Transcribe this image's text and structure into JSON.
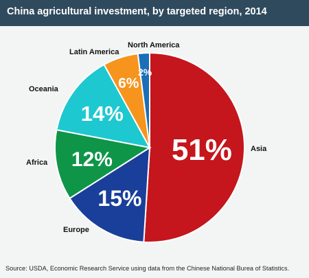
{
  "header": {
    "title": "China agricultural investment, by targeted region, 2014"
  },
  "footer": {
    "source": "Source: USDA, Economic Research Service using data from the Chinese National Burea of Statistics."
  },
  "chart_data": {
    "type": "pie",
    "title": "China agricultural investment, by targeted region, 2014",
    "start": "12 o'clock",
    "direction": "clockwise",
    "legend": "none",
    "slices": [
      {
        "name": "Asia",
        "value": 51,
        "label": "51%",
        "color": "#c4161c"
      },
      {
        "name": "Europe",
        "value": 15,
        "label": "15%",
        "color": "#1a3f9a"
      },
      {
        "name": "Africa",
        "value": 12,
        "label": "12%",
        "color": "#0f9548"
      },
      {
        "name": "Oceania",
        "value": 14,
        "label": "14%",
        "color": "#1ec8d0"
      },
      {
        "name": "Latin America",
        "value": 6,
        "label": "6%",
        "color": "#f7941d"
      },
      {
        "name": "North America",
        "value": 2,
        "label": "2%",
        "color": "#1a6fb8"
      }
    ]
  }
}
